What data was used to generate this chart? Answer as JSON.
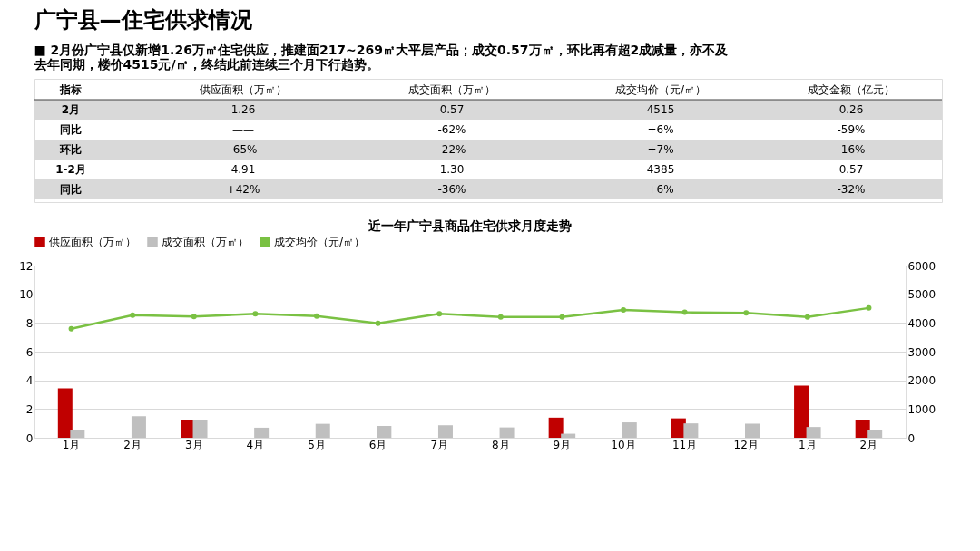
{
  "chart_data": [
    {
      "type": "other",
      "title": "广宁县—住宅供求情况",
      "subtitle": "■  2月份广宁县仅新增1.26万㎡住宅供应，推建面217~269㎡大平层产品；成交0.57万㎡，环比再有超2成减量，亦不及去年同期，楼价4515元/㎡，终结此前连续三个月下行趋势。",
      "annotations": [
        "指标",
        "供应面积（万㎡）",
        "成交面积（万㎡）",
        "成交均价（元/㎡）",
        "成交金额（亿元）",
        "2月",
        "1.26",
        "0.57",
        "4515",
        "0.26",
        "同比",
        "——",
        "-62%",
        "+6%",
        "-59%",
        "环比",
        "-65%",
        "-22%",
        "+7%",
        "-16%",
        "1-2月",
        "4.91",
        "1.30",
        "4385",
        "0.57",
        "同比",
        "+42%",
        "-36%",
        "+6%",
        "-32%"
      ]
    },
    {
      "type": "bar",
      "title": "近一年广宁县商品住宅供求月度走势",
      "categories": [
        "1月",
        "2月",
        "3月",
        "4月",
        "5月",
        "6月",
        "7月",
        "8月",
        "9月",
        "10月",
        "11月",
        "12月",
        "1月",
        "2月"
      ],
      "series": [
        {
          "name": "供应面积（万㎡）",
          "color": "#c00000",
          "values": [
            3.45,
            null,
            1.22,
            null,
            null,
            null,
            null,
            null,
            1.4,
            null,
            1.35,
            null,
            3.63,
            1.26
          ]
        },
        {
          "name": "成交面积（万㎡）",
          "color": "#bfbfbf",
          "values": [
            0.55,
            1.5,
            1.2,
            0.7,
            0.97,
            0.82,
            0.87,
            0.72,
            0.28,
            1.07,
            1.0,
            0.98,
            0.75,
            0.57
          ]
        },
        {
          "name": "成交均价（元/㎡）",
          "color": "#7ac143",
          "type": "line",
          "axis": "y2",
          "values": [
            3800,
            4270,
            4220,
            4320,
            4240,
            3990,
            4320,
            4210,
            4210,
            4450,
            4370,
            4350,
            4210,
            4520
          ]
        }
      ],
      "ylim": [
        0,
        12
      ],
      "yticks": [
        0,
        2,
        4,
        6,
        8,
        10,
        12
      ],
      "y2lim": [
        0,
        6000
      ],
      "y2ticks": [
        0,
        1000,
        2000,
        3000,
        4000,
        5000,
        6000
      ],
      "grid": "y",
      "legend": "top",
      "marker": "circle",
      "line_style": "solid"
    }
  ]
}
